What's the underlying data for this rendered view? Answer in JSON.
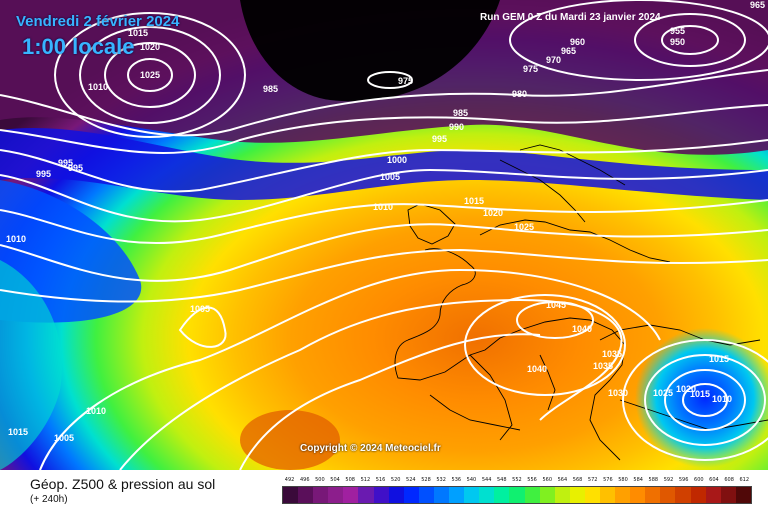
{
  "header": {
    "date": "Vendredi 2 février 2024",
    "time": "1:00 locale",
    "run": "Run GEM 0 Z du Mardi 23 janvier 2024"
  },
  "copyright": "Copyright © 2024 Meteociel.fr",
  "footer": {
    "title": "Géop. Z500 & pression au sol",
    "subtitle": "(+ 240h)"
  },
  "scale": {
    "labels": [
      "492",
      "496",
      "500",
      "504",
      "508",
      "512",
      "516",
      "520",
      "524",
      "528",
      "532",
      "536",
      "540",
      "544",
      "548",
      "552",
      "556",
      "560",
      "564",
      "568",
      "572",
      "576",
      "580",
      "584",
      "588",
      "592",
      "596",
      "600",
      "604",
      "608",
      "612"
    ],
    "colors": [
      "#3a0a3a",
      "#5a0f5a",
      "#781878",
      "#8c1e8c",
      "#a020a0",
      "#6a1ab0",
      "#4010c8",
      "#1010e0",
      "#0028ff",
      "#0050ff",
      "#0078ff",
      "#00a0ff",
      "#00c8f0",
      "#00e0d0",
      "#00f0a0",
      "#10f070",
      "#40f040",
      "#80f020",
      "#c0f010",
      "#e8f000",
      "#ffe000",
      "#ffc000",
      "#ffa000",
      "#ff8c00",
      "#f07000",
      "#e05800",
      "#d04000",
      "#c02800",
      "#a81818",
      "#801010",
      "#500808"
    ]
  },
  "isobars": {
    "labels": [
      {
        "value": "1015",
        "id": "l1015a"
      },
      {
        "value": "1020",
        "id": "l1020a"
      },
      {
        "value": "1025",
        "id": "l1025a"
      },
      {
        "value": "1010",
        "id": "l1010a"
      },
      {
        "value": "985",
        "id": "l985a"
      },
      {
        "value": "975",
        "id": "l975a"
      },
      {
        "value": "960",
        "id": "l960"
      },
      {
        "value": "965",
        "id": "l965a"
      },
      {
        "value": "970",
        "id": "l970"
      },
      {
        "value": "975",
        "id": "l975b"
      },
      {
        "value": "980",
        "id": "l980"
      },
      {
        "value": "955",
        "id": "l955"
      },
      {
        "value": "950",
        "id": "l950"
      },
      {
        "value": "965",
        "id": "l965b"
      },
      {
        "value": "985",
        "id": "l985b"
      },
      {
        "value": "990",
        "id": "l990"
      },
      {
        "value": "995",
        "id": "l995a"
      },
      {
        "value": "995",
        "id": "l995b"
      },
      {
        "value": "995",
        "id": "l995c"
      },
      {
        "value": "995",
        "id": "l995d"
      },
      {
        "value": "1000",
        "id": "l1000"
      },
      {
        "value": "1005",
        "id": "l1005a"
      },
      {
        "value": "1010",
        "id": "l1010b"
      },
      {
        "value": "1015",
        "id": "l1015b"
      },
      {
        "value": "1020",
        "id": "l1020b"
      },
      {
        "value": "1025",
        "id": "l1025b"
      },
      {
        "value": "1010",
        "id": "l1010c"
      },
      {
        "value": "1005",
        "id": "l1005b"
      },
      {
        "value": "1045",
        "id": "l1045"
      },
      {
        "value": "1040",
        "id": "l1040a"
      },
      {
        "value": "1035",
        "id": "l1035a"
      },
      {
        "value": "1035",
        "id": "l1035b"
      },
      {
        "value": "1040",
        "id": "l1040b"
      },
      {
        "value": "1030",
        "id": "l1030"
      },
      {
        "value": "1025",
        "id": "l1025c"
      },
      {
        "value": "1020",
        "id": "l1020c"
      },
      {
        "value": "1015",
        "id": "l1015c"
      },
      {
        "value": "1010",
        "id": "l1010d"
      },
      {
        "value": "1015",
        "id": "l1015d"
      },
      {
        "value": "1010",
        "id": "l1010e"
      },
      {
        "value": "1015",
        "id": "l1015e"
      },
      {
        "value": "1005",
        "id": "l1005c"
      }
    ]
  }
}
